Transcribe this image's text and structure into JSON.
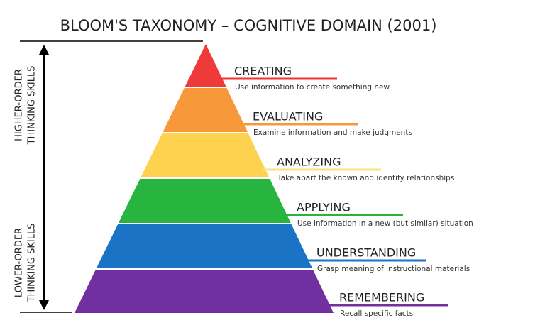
{
  "title": "BLOOM'S TAXONOMY – COGNITIVE DOMAIN (2001)",
  "side_labels": {
    "higher": [
      "HIGHER-ORDER",
      "THINKING SKILLS"
    ],
    "lower": [
      "LOWER-ORDER",
      "THINKING SKILLS"
    ]
  },
  "levels": [
    {
      "name": "CREATING",
      "description": "Use information to create something new"
    },
    {
      "name": "EVALUATING",
      "description": "Examine information and make judgments"
    },
    {
      "name": "ANALYZING",
      "description": "Take apart the known and identify relationships"
    },
    {
      "name": "APPLYING",
      "description": "Use information in a new (but similar) situation"
    },
    {
      "name": "UNDERSTANDING",
      "description": "Grasp meaning of instructional materials"
    },
    {
      "name": "REMEMBERING",
      "description": "Recall specific facts"
    }
  ]
}
